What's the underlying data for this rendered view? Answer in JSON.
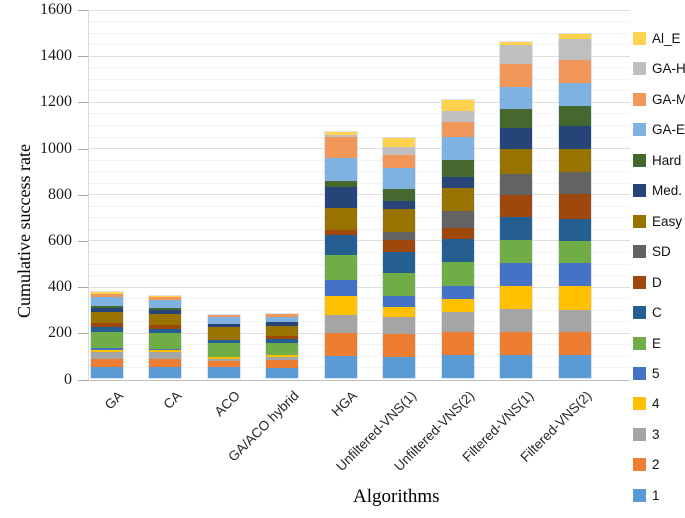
{
  "chart_data": {
    "type": "bar",
    "variant": "stacked-vertical",
    "title": "",
    "xlabel": "Algorithms",
    "ylabel": "Cumulative success rate",
    "ylim": [
      0,
      1600
    ],
    "yticks": [
      0,
      200,
      400,
      600,
      800,
      1000,
      1200,
      1400,
      1600
    ],
    "minor_grid_step": 50,
    "grid": "horizontal",
    "legend_position": "right",
    "legend_order": "top of list = top of stack",
    "categories": [
      "GA",
      "CA",
      "ACO",
      "GA/ACO hybrid",
      "HGA",
      "Unfiltered-VNS(1)",
      "Unfiltered-VNS(2)",
      "Filtered-VNS(1)",
      "Filtered-VNS(2)"
    ],
    "series": [
      {
        "name": "1",
        "color": "#5B9BD5",
        "values": [
          52,
          52,
          50,
          46,
          100,
          96,
          103,
          103,
          103
        ]
      },
      {
        "name": "2",
        "color": "#ED7D31",
        "values": [
          35,
          35,
          29,
          36,
          97,
          100,
          100,
          100,
          100
        ]
      },
      {
        "name": "3",
        "color": "#A5A5A5",
        "values": [
          30,
          30,
          8,
          12,
          79,
          72,
          86,
          101,
          97
        ]
      },
      {
        "name": "4",
        "color": "#FFC000",
        "values": [
          11,
          10,
          11,
          9,
          86,
          43,
          58,
          100,
          104
        ]
      },
      {
        "name": "5",
        "color": "#4472C4",
        "values": [
          5,
          5,
          0,
          0,
          67,
          50,
          57,
          100,
          100
        ]
      },
      {
        "name": "E",
        "color": "#70AD47",
        "values": [
          72,
          70,
          60,
          57,
          110,
          100,
          105,
          101,
          96
        ]
      },
      {
        "name": "C",
        "color": "#255E91",
        "values": [
          21,
          18,
          15,
          15,
          89,
          93,
          100,
          100,
          95
        ]
      },
      {
        "name": "D",
        "color": "#9E480E",
        "values": [
          18,
          17,
          0,
          14,
          20,
          50,
          46,
          93,
          110
        ]
      },
      {
        "name": "SD",
        "color": "#636363",
        "values": [
          0,
          0,
          0,
          0,
          0,
          36,
          76,
          93,
          96
        ]
      },
      {
        "name": "Easy",
        "color": "#997300",
        "values": [
          50,
          48,
          55,
          47,
          97,
          100,
          100,
          110,
          100
        ]
      },
      {
        "name": "Med.",
        "color": "#264478",
        "values": [
          19,
          17,
          14,
          15,
          89,
          36,
          50,
          90,
          97
        ]
      },
      {
        "name": "Hard",
        "color": "#44682D",
        "values": [
          10,
          10,
          0,
          0,
          29,
          50,
          72,
          82,
          89
        ]
      },
      {
        "name": "GA-E",
        "color": "#7FB2E0",
        "values": [
          38,
          35,
          33,
          24,
          100,
          93,
          100,
          97,
          101
        ]
      },
      {
        "name": "GA-M",
        "color": "#F1975A",
        "values": [
          14,
          13,
          10,
          14,
          91,
          58,
          65,
          100,
          100
        ]
      },
      {
        "name": "GA-H",
        "color": "#BFBFBF",
        "values": [
          0,
          0,
          0,
          0,
          10,
          35,
          50,
          83,
          90
        ]
      },
      {
        "name": "Al_E",
        "color": "#FFD34D",
        "values": [
          10,
          8,
          0,
          0,
          11,
          36,
          46,
          11,
          24
        ]
      }
    ],
    "totals": [
      385,
      368,
      285,
      289,
      1075,
      1048,
      1214,
      1464,
      1502
    ]
  }
}
